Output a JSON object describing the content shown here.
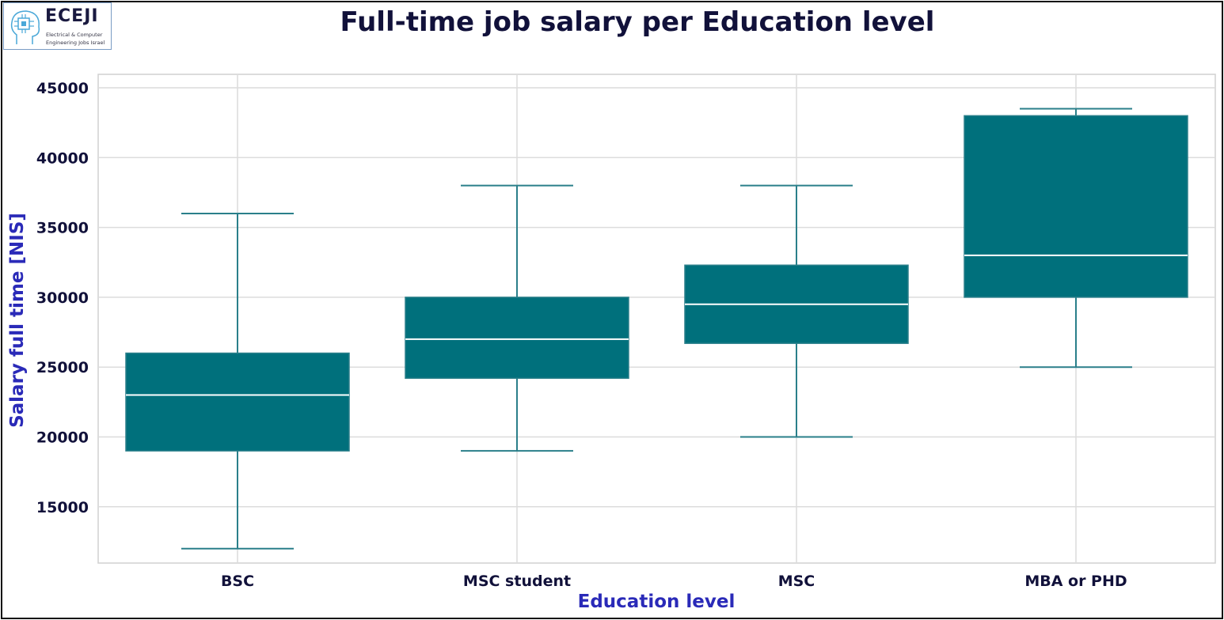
{
  "logo": {
    "word": "ECEJI",
    "line1": "Electrical & Computer",
    "line2": "Engineering Jobs Israel"
  },
  "colors": {
    "box": "#00707c",
    "whisker": "#2a7f8a",
    "median": "#ffffff",
    "grid": "#dcdcdc",
    "title": "#11113a",
    "axis_label": "#2a2ab8"
  },
  "chart_data": {
    "type": "box",
    "title": "Full-time job salary per Education level",
    "xlabel": "Education level",
    "ylabel": "Salary full time [NIS]",
    "ylim": [
      11000,
      46000
    ],
    "yticks": [
      15000,
      20000,
      25000,
      30000,
      35000,
      40000,
      45000
    ],
    "grid": true,
    "categories": [
      "BSC",
      "MSC student",
      "MSC",
      "MBA or PHD"
    ],
    "boxes": [
      {
        "category": "BSC",
        "whisker_low": 12000,
        "q1": 19000,
        "median": 23000,
        "q3": 26000,
        "whisker_high": 36000
      },
      {
        "category": "MSC student",
        "whisker_low": 19000,
        "q1": 24200,
        "median": 27000,
        "q3": 30000,
        "whisker_high": 38000
      },
      {
        "category": "MSC",
        "whisker_low": 20000,
        "q1": 26700,
        "median": 29500,
        "q3": 32300,
        "whisker_high": 38000
      },
      {
        "category": "MBA or PHD",
        "whisker_low": 25000,
        "q1": 30000,
        "median": 33000,
        "q3": 43000,
        "whisker_high": 43500
      }
    ]
  }
}
